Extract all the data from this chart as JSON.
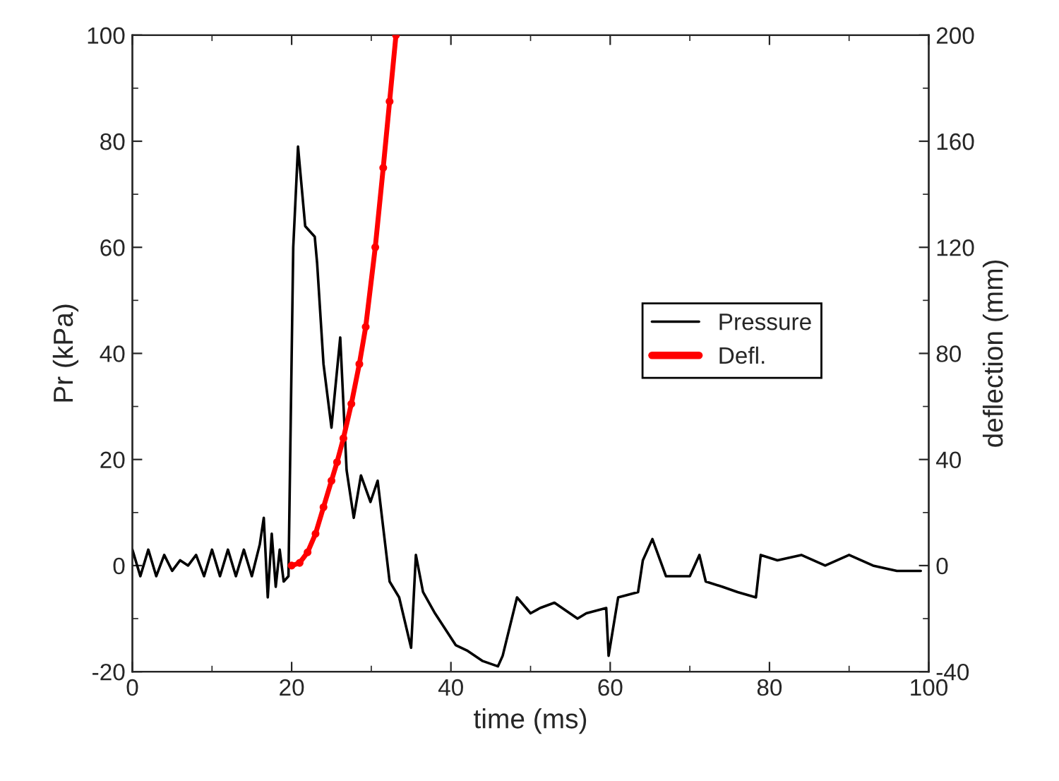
{
  "chart_data": {
    "type": "line",
    "xlabel": "time (ms)",
    "ylabel": "Pr (kPa)",
    "y2label": "deflection (mm)",
    "xlim": [
      0,
      100
    ],
    "xticks": [
      0,
      20,
      40,
      60,
      80,
      100
    ],
    "ylim": [
      -20,
      100
    ],
    "yticks": [
      -20,
      0,
      20,
      40,
      60,
      80,
      100
    ],
    "y2lim": [
      -40,
      200
    ],
    "y2ticks": [
      -40,
      0,
      40,
      80,
      120,
      160,
      200
    ],
    "legend": "right",
    "grid": false,
    "series": [
      {
        "name": "Pressure",
        "color": "#000000",
        "marker": "none",
        "x": [
          0,
          1,
          2,
          3,
          4,
          5,
          6,
          7,
          8,
          9,
          10,
          11,
          12,
          13,
          14,
          15,
          16,
          16.5,
          17,
          17.5,
          18,
          18.5,
          19,
          19.6,
          20.2,
          20.8,
          21.7,
          22.9,
          23.2,
          24,
          25,
          26.1,
          26.9,
          27.8,
          28.7,
          29.9,
          30.8,
          32.3,
          33.5,
          35,
          35.6,
          36.5,
          38,
          40.6,
          42,
          44,
          45.9,
          46.5,
          48.3,
          50,
          51.2,
          53,
          55.9,
          57,
          59.5,
          59.8,
          61,
          63.5,
          64.1,
          65.3,
          67,
          70,
          71.2,
          72,
          74.1,
          76,
          78.3,
          78.9,
          81,
          84,
          87,
          90,
          93,
          96,
          99
        ],
        "values": [
          3,
          -2,
          3,
          -2,
          2,
          -1,
          1,
          0,
          2,
          -2,
          3,
          -2,
          3,
          -2,
          3,
          -2,
          4,
          9,
          -6,
          6,
          -4,
          3,
          -3,
          -2,
          60,
          79,
          64,
          62,
          57,
          38,
          26,
          43,
          18,
          9,
          17,
          12,
          16,
          -3,
          -6,
          -15.5,
          2,
          -5,
          -9,
          -15,
          -16,
          -18,
          -19,
          -17,
          -6,
          -9,
          -8,
          -7,
          -10,
          -9,
          -8,
          -17,
          -6,
          -5,
          1,
          5,
          -2,
          -2,
          2,
          -3,
          -4,
          -5,
          -6,
          2,
          1,
          2,
          0,
          2,
          0,
          -1,
          -1
        ]
      },
      {
        "name": "Defl.",
        "color": "#ff0000",
        "marker": "circle",
        "axis": "y2",
        "x": [
          20,
          21,
          22,
          23,
          24,
          25,
          25.7,
          26.5,
          27.5,
          28.5,
          29.3,
          30.5,
          31.5,
          32.3,
          33.1
        ],
        "values": [
          0,
          1,
          5,
          12,
          22,
          32,
          39,
          48,
          61,
          76,
          90,
          120,
          150,
          175,
          200
        ]
      }
    ]
  }
}
